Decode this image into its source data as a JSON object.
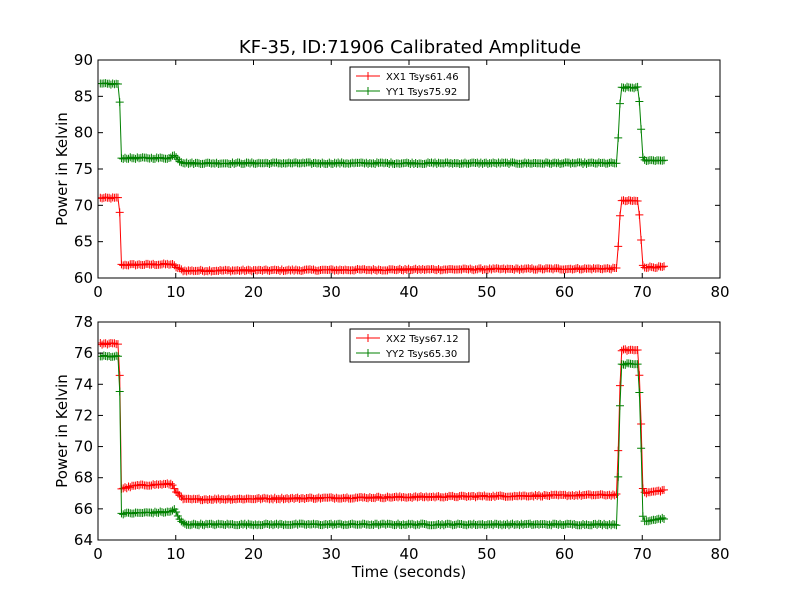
{
  "chart_data": {
    "title": "KF-35, ID:71906 Calibrated Amplitude",
    "xlabel": "Time (seconds)",
    "panels": [
      {
        "type": "line",
        "ylabel": "Power in Kelvin",
        "xlim": [
          0,
          80
        ],
        "ylim": [
          60,
          90
        ],
        "xticks": [
          0,
          10,
          20,
          30,
          40,
          50,
          60,
          70,
          80
        ],
        "yticks": [
          60,
          65,
          70,
          75,
          80,
          85,
          90
        ],
        "grid": false,
        "legend_position": "top-center",
        "series": [
          {
            "name": "XX1 Tsys61.46",
            "color": "#ff0000",
            "marker": "plus",
            "x": [
              0.3,
              2.6,
              2.8,
              3.0,
              9.5,
              10.2,
              11.0,
              66.8,
              67.0,
              67.3,
              69.5,
              69.8,
              70.1,
              72.8
            ],
            "y": [
              71.0,
              71.0,
              69.0,
              61.8,
              61.9,
              61.4,
              61.0,
              61.3,
              67.0,
              70.6,
              70.6,
              66.0,
              61.5,
              61.5
            ]
          },
          {
            "name": "YY1 Tsys75.92",
            "color": "#008000",
            "marker": "plus",
            "x": [
              0.3,
              2.6,
              2.8,
              3.0,
              9.3,
              9.8,
              10.5,
              11.2,
              66.8,
              67.0,
              67.3,
              69.5,
              69.8,
              70.1,
              72.8
            ],
            "y": [
              86.7,
              86.7,
              84.0,
              76.5,
              76.5,
              77.0,
              76.1,
              75.8,
              75.8,
              82.0,
              86.2,
              86.2,
              81.5,
              76.2,
              76.2
            ]
          }
        ]
      },
      {
        "type": "line",
        "ylabel": "Power in Kelvin",
        "xlabel": "Time (seconds)",
        "xlim": [
          0,
          80
        ],
        "ylim": [
          64,
          78
        ],
        "xticks": [
          0,
          10,
          20,
          30,
          40,
          50,
          60,
          70,
          80
        ],
        "yticks": [
          64,
          66,
          68,
          70,
          72,
          74,
          76,
          78
        ],
        "grid": false,
        "legend_position": "top-center",
        "series": [
          {
            "name": "XX2 Tsys67.12",
            "color": "#ff0000",
            "marker": "plus",
            "x": [
              0.3,
              2.6,
              2.8,
              3.0,
              5.0,
              9.5,
              10.2,
              11.0,
              66.8,
              67.0,
              67.3,
              69.5,
              69.8,
              70.1,
              72.8
            ],
            "y": [
              76.6,
              76.6,
              74.5,
              67.3,
              67.5,
              67.6,
              67.0,
              66.6,
              66.9,
              72.0,
              76.2,
              76.2,
              72.5,
              67.0,
              67.2
            ]
          },
          {
            "name": "YY2 Tsys65.30",
            "color": "#008000",
            "marker": "plus",
            "x": [
              0.3,
              2.6,
              2.8,
              3.0,
              9.3,
              9.8,
              10.5,
              11.2,
              66.8,
              67.0,
              67.3,
              69.5,
              69.8,
              70.1,
              72.8
            ],
            "y": [
              75.8,
              75.8,
              73.5,
              65.7,
              65.8,
              66.0,
              65.3,
              65.0,
              65.0,
              70.5,
              75.3,
              75.3,
              71.0,
              65.2,
              65.4
            ]
          }
        ]
      }
    ]
  }
}
